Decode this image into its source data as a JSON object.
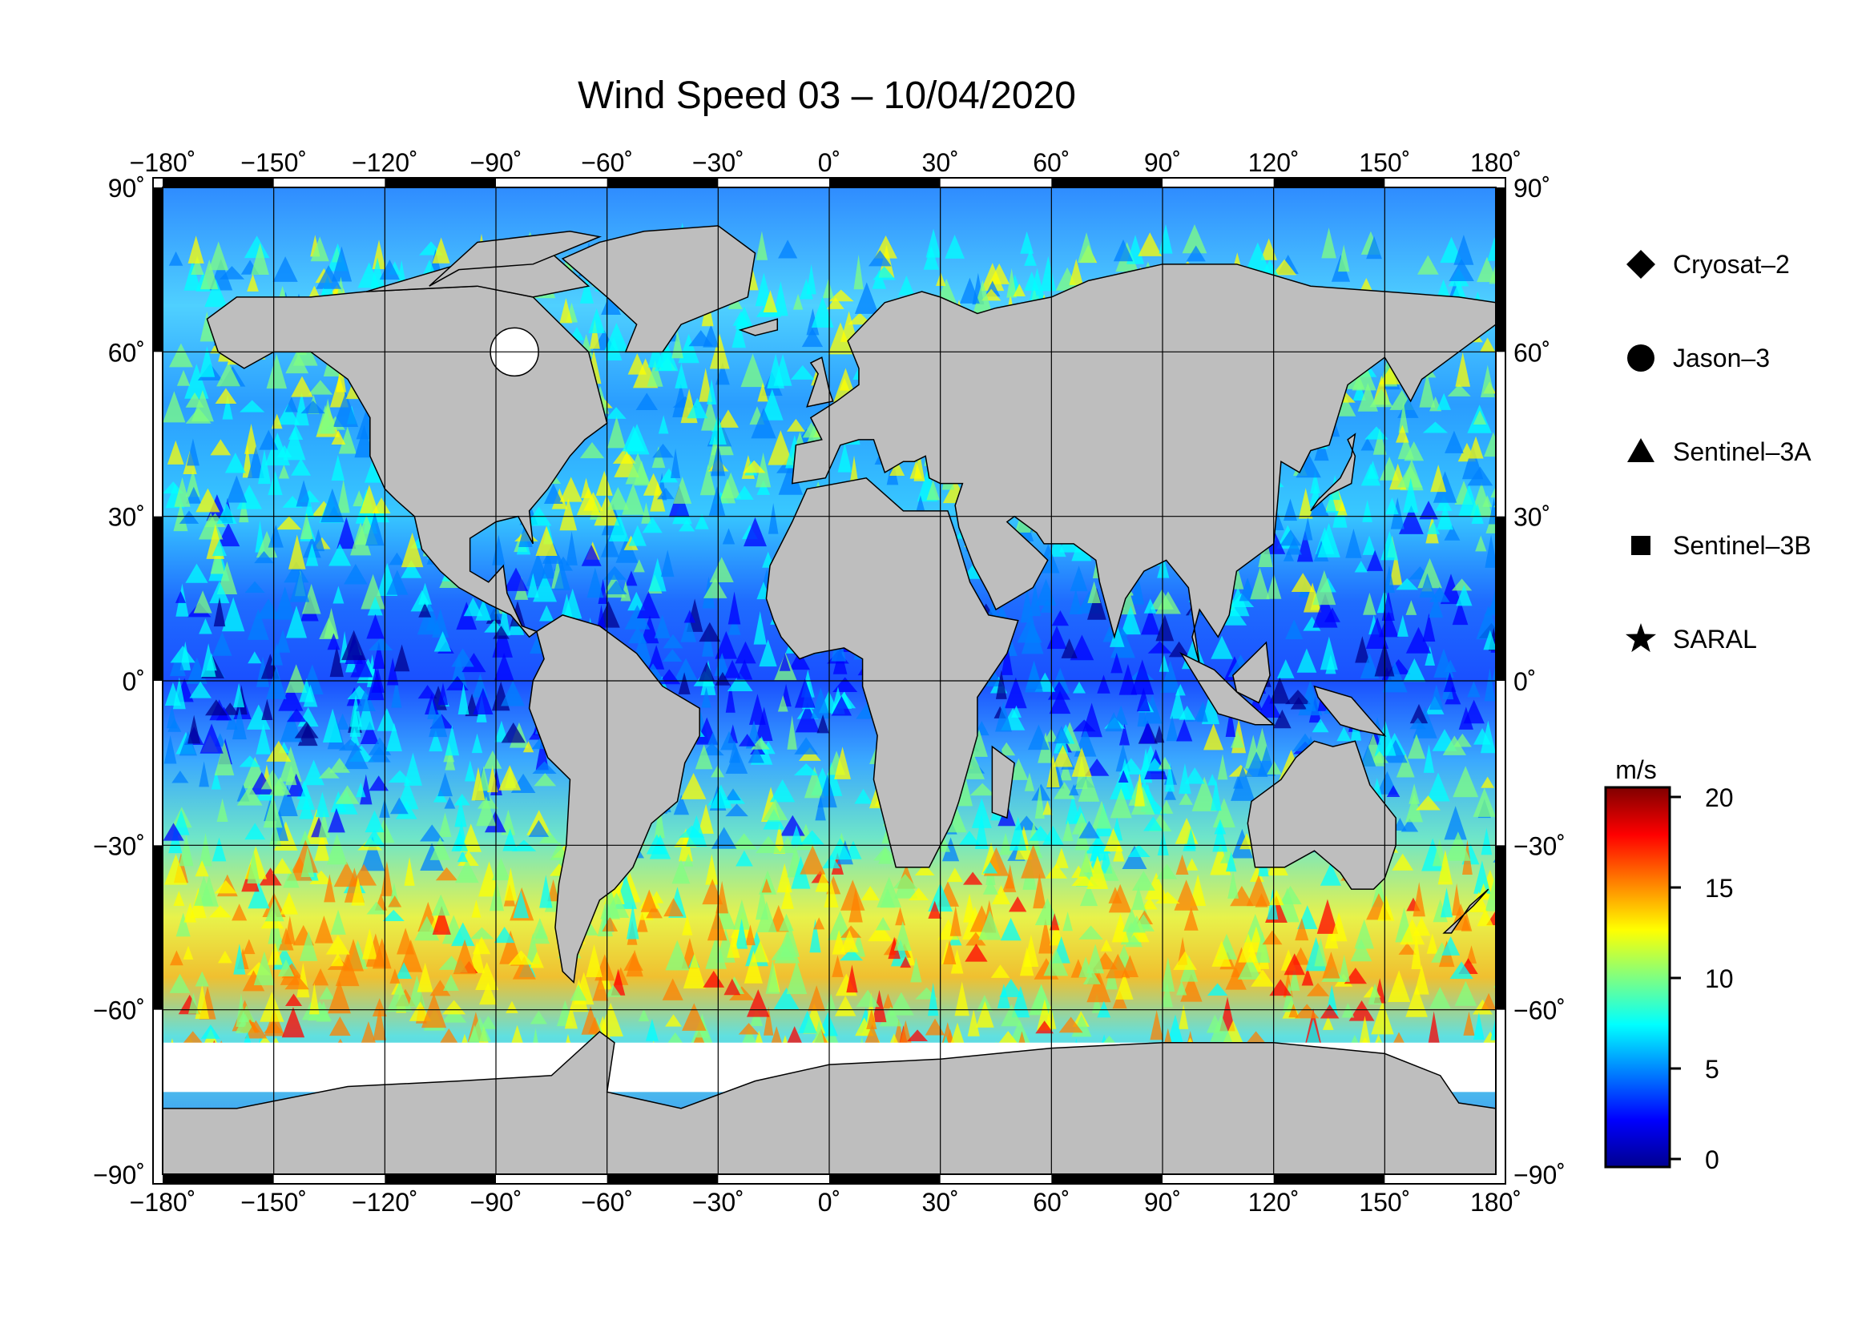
{
  "title": "Wind Speed 03 – 10/04/2020",
  "map": {
    "projection": "equirectangular",
    "lon_range": [
      -180,
      180
    ],
    "lat_range": [
      -90,
      90
    ],
    "grid_step_lon": 30,
    "grid_step_lat": 30,
    "lon_labels": [
      "−180˚",
      "−150˚",
      "−120˚",
      "−90˚",
      "−60˚",
      "−30˚",
      "0˚",
      "30˚",
      "60˚",
      "90˚",
      "120˚",
      "150˚",
      "180˚"
    ],
    "lat_labels": [
      "90˚",
      "60˚",
      "30˚",
      "0˚",
      "−30˚",
      "−60˚",
      "−90˚"
    ],
    "land_color": "#bebebe",
    "ice_color": "#ffffff",
    "gridline_color": "#000000"
  },
  "legend": {
    "satellites": [
      {
        "name": "Cryosat–2",
        "symbol": "diamond"
      },
      {
        "name": "Jason–3",
        "symbol": "circle"
      },
      {
        "name": "Sentinel–3A",
        "symbol": "triangle"
      },
      {
        "name": "Sentinel–3B",
        "symbol": "square"
      },
      {
        "name": "SARAL",
        "symbol": "star"
      }
    ]
  },
  "colorbar": {
    "unit": "m/s",
    "min": 0,
    "max": 20,
    "ticks": [
      "20",
      "15",
      "10",
      "5",
      "0"
    ],
    "colormap": [
      "#00008f",
      "#0000ff",
      "#0080ff",
      "#00ffff",
      "#80ff80",
      "#ffff00",
      "#ff8000",
      "#ff0000",
      "#800000"
    ]
  }
}
